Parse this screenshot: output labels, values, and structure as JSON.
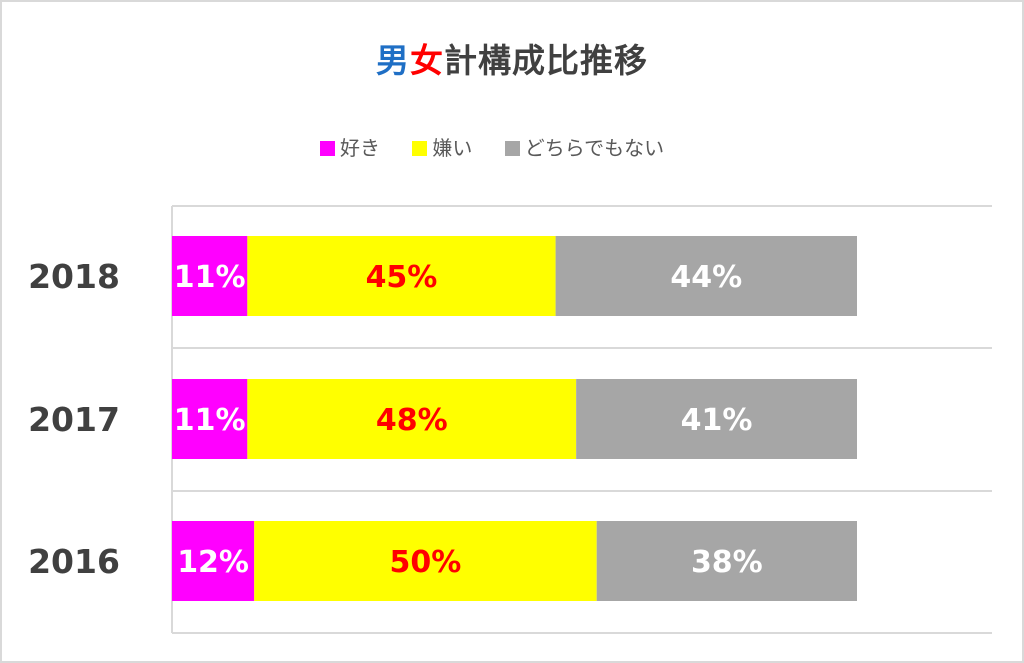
{
  "title": {
    "parts": [
      {
        "text": "男",
        "color": "#1f6fc5"
      },
      {
        "text": "女",
        "color": "#ff0000"
      },
      {
        "text": "計構成比推移",
        "color": "#404040"
      }
    ]
  },
  "legend": [
    {
      "label": "好き",
      "color": "#ff00ff"
    },
    {
      "label": "嫌い",
      "color": "#ffff00"
    },
    {
      "label": "どちらでもない",
      "color": "#a6a6a6"
    }
  ],
  "chart_data": {
    "type": "bar",
    "orientation": "horizontal",
    "stacked": "percent",
    "categories": [
      "2018",
      "2017",
      "2016"
    ],
    "series": [
      {
        "name": "好き",
        "values": [
          11,
          11,
          12
        ],
        "labels": [
          "11%",
          "11%",
          "12%"
        ],
        "color": "#ff00ff",
        "label_color": "#ffffff"
      },
      {
        "name": "嫌い",
        "values": [
          45,
          48,
          50
        ],
        "labels": [
          "45%",
          "48%",
          "50%"
        ],
        "color": "#ffff00",
        "label_color": "#ff0000"
      },
      {
        "name": "どちらでもない",
        "values": [
          44,
          41,
          38
        ],
        "labels": [
          "44%",
          "41%",
          "38%"
        ],
        "color": "#a6a6a6",
        "label_color": "#ffffff"
      }
    ],
    "grid": true,
    "legend_position": "top"
  }
}
